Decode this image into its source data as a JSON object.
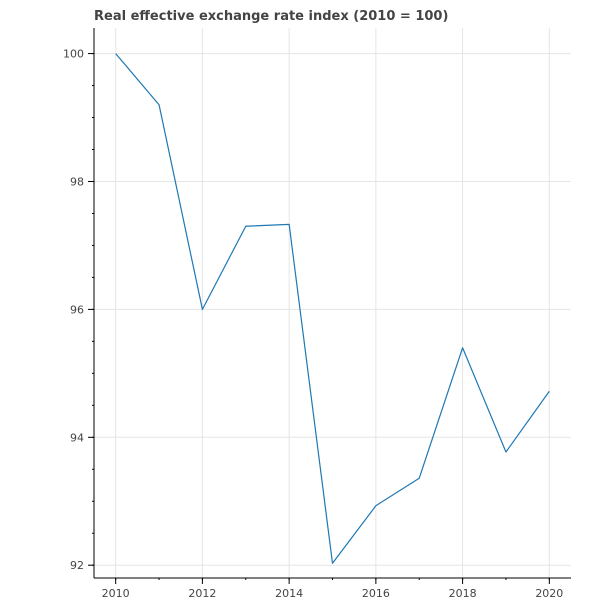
{
  "chart_data": {
    "type": "line",
    "title": "Real effective exchange rate index (2010 = 100)",
    "xlabel": "",
    "ylabel": "",
    "x": [
      2010,
      2011,
      2012,
      2013,
      2014,
      2015,
      2016,
      2017,
      2018,
      2019,
      2020
    ],
    "series": [
      {
        "values": [
          100.0,
          99.2,
          96.0,
          97.3,
          97.33,
          92.03,
          92.93,
          93.36,
          95.4,
          93.77,
          94.72
        ],
        "color": "#1f77b4"
      }
    ],
    "xlim": [
      2009.5,
      2020.5
    ],
    "ylim": [
      91.8,
      100.4
    ],
    "x_ticks": [
      2010,
      2012,
      2014,
      2016,
      2018,
      2020
    ],
    "x_tick_labels": [
      "2010",
      "2012",
      "2014",
      "2016",
      "2018",
      "2020"
    ],
    "y_ticks": [
      92,
      94,
      96,
      98,
      100
    ],
    "y_tick_labels": [
      "92",
      "94",
      "96",
      "98",
      "100"
    ],
    "grid": true,
    "legend": "none"
  }
}
